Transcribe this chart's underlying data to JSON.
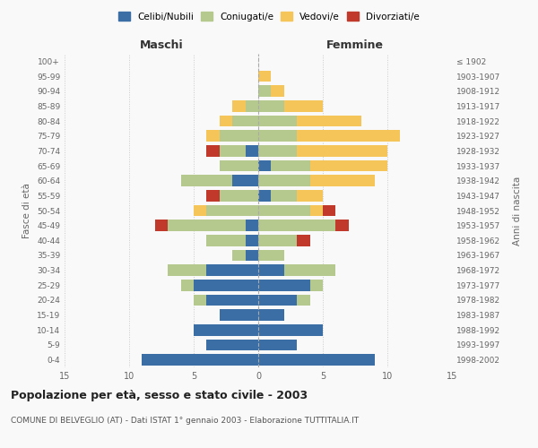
{
  "age_groups": [
    "0-4",
    "5-9",
    "10-14",
    "15-19",
    "20-24",
    "25-29",
    "30-34",
    "35-39",
    "40-44",
    "45-49",
    "50-54",
    "55-59",
    "60-64",
    "65-69",
    "70-74",
    "75-79",
    "80-84",
    "85-89",
    "90-94",
    "95-99",
    "100+"
  ],
  "birth_years": [
    "1998-2002",
    "1993-1997",
    "1988-1992",
    "1983-1987",
    "1978-1982",
    "1973-1977",
    "1968-1972",
    "1963-1967",
    "1958-1962",
    "1953-1957",
    "1948-1952",
    "1943-1947",
    "1938-1942",
    "1933-1937",
    "1928-1932",
    "1923-1927",
    "1918-1922",
    "1913-1917",
    "1908-1912",
    "1903-1907",
    "≤ 1902"
  ],
  "maschi": {
    "celibi": [
      9,
      4,
      5,
      3,
      4,
      5,
      4,
      1,
      1,
      1,
      0,
      0,
      2,
      0,
      1,
      0,
      0,
      0,
      0,
      0,
      0
    ],
    "coniugati": [
      0,
      0,
      0,
      0,
      1,
      1,
      3,
      1,
      3,
      6,
      4,
      3,
      4,
      3,
      2,
      3,
      2,
      1,
      0,
      0,
      0
    ],
    "vedovi": [
      0,
      0,
      0,
      0,
      0,
      0,
      0,
      0,
      0,
      0,
      1,
      0,
      0,
      0,
      0,
      1,
      1,
      1,
      0,
      0,
      0
    ],
    "divorziati": [
      0,
      0,
      0,
      0,
      0,
      0,
      0,
      0,
      0,
      1,
      0,
      1,
      0,
      0,
      1,
      0,
      0,
      0,
      0,
      0,
      0
    ]
  },
  "femmine": {
    "nubili": [
      9,
      3,
      5,
      2,
      3,
      4,
      2,
      0,
      0,
      0,
      0,
      1,
      0,
      1,
      0,
      0,
      0,
      0,
      0,
      0,
      0
    ],
    "coniugate": [
      0,
      0,
      0,
      0,
      1,
      1,
      4,
      2,
      3,
      6,
      4,
      2,
      4,
      3,
      3,
      3,
      3,
      2,
      1,
      0,
      0
    ],
    "vedove": [
      0,
      0,
      0,
      0,
      0,
      0,
      0,
      0,
      0,
      0,
      1,
      2,
      5,
      6,
      7,
      8,
      5,
      3,
      1,
      1,
      0
    ],
    "divorziate": [
      0,
      0,
      0,
      0,
      0,
      0,
      0,
      0,
      1,
      1,
      1,
      0,
      0,
      0,
      0,
      0,
      0,
      0,
      0,
      0,
      0
    ]
  },
  "colors": {
    "celibi_nubili": "#3a6ea5",
    "coniugati": "#b5c98e",
    "vedovi": "#f5c55a",
    "divorziati": "#c0392b"
  },
  "xlim": 15,
  "title": "Popolazione per età, sesso e stato civile - 2003",
  "subtitle": "COMUNE DI BELVEGLIO (AT) - Dati ISTAT 1° gennaio 2003 - Elaborazione TUTTITALIA.IT",
  "xlabel_left": "Maschi",
  "xlabel_right": "Femmine",
  "ylabel_left": "Fasce di età",
  "ylabel_right": "Anni di nascita",
  "background_color": "#f9f9f9"
}
